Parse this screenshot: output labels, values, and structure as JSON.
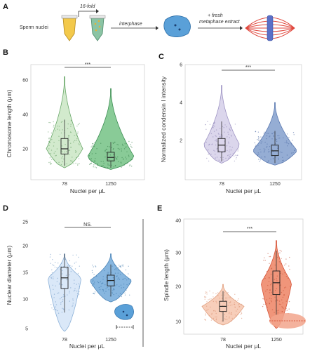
{
  "panel_labels": {
    "A": "A",
    "B": "B",
    "C": "C",
    "D": "D",
    "E": "E"
  },
  "schematic": {
    "sperm_nuclei_label": "Sperm nuclei",
    "dilution_label": "16-fold",
    "step1_label": "interphase",
    "step2_line1": "+ fresh",
    "step2_line2": "metaphase extract"
  },
  "colors": {
    "light_green": "#cde8c8",
    "green": "#7cc58c",
    "lavender": "#d7d1ea",
    "steel_blue": "#8aa4cf",
    "pale_blue": "#d6e6f7",
    "blue": "#7aaedb",
    "peach": "#f6c9b2",
    "coral": "#ee8a6c",
    "nucleus_blue": "#5aa0d8",
    "spindle_red": "#e0463c",
    "spindle_blue": "#5a70c8"
  },
  "chart_data": [
    {
      "panel": "B",
      "type": "violin",
      "xlabel": "Nuclei per μL",
      "ylabel": "Chromosome length (μm)",
      "categories": [
        "78",
        "1250"
      ],
      "yticks": [
        "20",
        "40",
        "60"
      ],
      "ylim": [
        5,
        70
      ],
      "significance": "***",
      "series": [
        {
          "category": "78",
          "q1": 17,
          "median": 20,
          "q3": 26,
          "whisker_low": 10,
          "whisker_high": 37,
          "min": 9,
          "max": 62
        },
        {
          "category": "1250",
          "q1": 13,
          "median": 15,
          "q3": 18,
          "whisker_low": 9,
          "whisker_high": 24,
          "min": 8,
          "max": 55
        }
      ]
    },
    {
      "panel": "C",
      "type": "violin",
      "xlabel": "Nuclei per μL",
      "ylabel": "Normalized condensin I intensity",
      "categories": [
        "78",
        "1250"
      ],
      "yticks": [
        "2",
        "4",
        "6"
      ],
      "ylim": [
        0.5,
        6.5
      ],
      "significance": "***",
      "series": [
        {
          "category": "78",
          "q1": 1.4,
          "median": 1.75,
          "q3": 2.1,
          "whisker_low": 0.9,
          "whisker_high": 3.0,
          "min": 0.8,
          "max": 4.9
        },
        {
          "category": "1250",
          "q1": 1.2,
          "median": 1.45,
          "q3": 1.75,
          "whisker_low": 0.8,
          "whisker_high": 2.5,
          "min": 0.7,
          "max": 4.0
        }
      ]
    },
    {
      "panel": "D",
      "type": "violin",
      "xlabel": "Nuclei per μL",
      "ylabel": "Nuclear diameter (μm)",
      "categories": [
        "78",
        "1250"
      ],
      "yticks": [
        "5",
        "10",
        "15",
        "20",
        "25"
      ],
      "ylim": [
        4,
        25
      ],
      "significance": "NS.",
      "series": [
        {
          "category": "78",
          "q1": 12.5,
          "median": 14.5,
          "q3": 16.5,
          "whisker_low": 8,
          "whisker_high": 19,
          "min": 4.5,
          "max": 19
        },
        {
          "category": "1250",
          "q1": 13,
          "median": 14,
          "q3": 15,
          "whisker_low": 11,
          "whisker_high": 17,
          "min": 10,
          "max": 19
        }
      ]
    },
    {
      "panel": "E",
      "type": "violin",
      "xlabel": "Nuclei per μL",
      "ylabel": "Spindle length (μm)",
      "categories": [
        "78",
        "1250"
      ],
      "yticks": [
        "10",
        "20",
        "30",
        "40"
      ],
      "ylim": [
        5,
        40
      ],
      "significance": "***",
      "series": [
        {
          "category": "78",
          "q1": 13,
          "median": 14.5,
          "q3": 16,
          "whisker_low": 10,
          "whisker_high": 19,
          "min": 9,
          "max": 21
        },
        {
          "category": "1250",
          "q1": 18,
          "median": 21.5,
          "q3": 25,
          "whisker_low": 12,
          "whisker_high": 31,
          "min": 8,
          "max": 34
        }
      ]
    }
  ]
}
